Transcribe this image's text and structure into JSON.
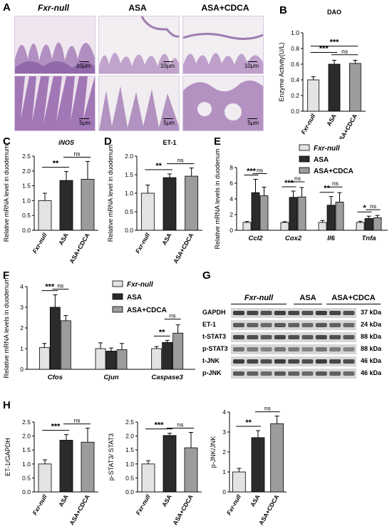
{
  "panels": {
    "A": {
      "label": "A",
      "columns": [
        "Fxr-null",
        "ASA",
        "ASA+CDCA"
      ],
      "scale_top": [
        "10μm",
        "10μm",
        "10μm"
      ],
      "scale_bottom": [
        "5μm",
        "5μm",
        "5μm"
      ]
    },
    "B": {
      "label": "B"
    },
    "C": {
      "label": "C"
    },
    "D": {
      "label": "D"
    },
    "E": {
      "label": "E"
    },
    "F": {
      "label": "F"
    },
    "G": {
      "label": "G",
      "groups": [
        "Fxr-null",
        "ASA",
        "ASA+CDCA"
      ],
      "rows": [
        "GAPDH",
        "ET-1",
        "t-STAT3",
        "p-STAT3",
        "t-JNK",
        "p-JNK"
      ],
      "kda": [
        "37 kDa",
        "24 kDa",
        "88 kDa",
        "88 kDa",
        "46 kDa",
        "46 kDa"
      ]
    },
    "H": {
      "label": "H"
    }
  },
  "legend": {
    "items": [
      "Fxr-null",
      "ASA",
      "ASA+CDCA"
    ]
  },
  "colors": {
    "fxr": "#e3e3e3",
    "asa": "#2b2b2b",
    "cdca": "#9c9c9c"
  },
  "chart_data": [
    {
      "id": "B",
      "type": "bar",
      "title": "DAO",
      "ylabel": "Enzyme Activity(U/L)",
      "categories": [
        "Fxr-null",
        "ASA",
        "ASA+CDCA"
      ],
      "values": [
        0.4,
        0.6,
        0.61
      ],
      "errors": [
        0.04,
        0.05,
        0.04
      ],
      "ylim": [
        0,
        1.0
      ],
      "yticks": [
        "0.0",
        "0.2",
        "0.4",
        "0.6",
        "0.8",
        "1.0"
      ],
      "sig": [
        {
          "a": 0,
          "b": 1,
          "label": "***"
        },
        {
          "a": 0,
          "b": 2,
          "label": "***"
        },
        {
          "a": 1,
          "b": 2,
          "label": "ns"
        }
      ]
    },
    {
      "id": "C",
      "type": "bar",
      "title": "iNOS",
      "ylabel": "Relative mRNA level in duodenum",
      "categories": [
        "Fxr-null",
        "ASA",
        "ASA+CDCA"
      ],
      "values": [
        1.0,
        1.68,
        1.72
      ],
      "errors": [
        0.25,
        0.3,
        0.6
      ],
      "ylim": [
        0,
        2.5
      ],
      "yticks": [
        "0.0",
        "0.5",
        "1.0",
        "1.5",
        "2.0",
        "2.5"
      ],
      "sig": [
        {
          "a": 0,
          "b": 1,
          "label": "**"
        },
        {
          "a": 1,
          "b": 2,
          "label": "ns"
        }
      ]
    },
    {
      "id": "D",
      "type": "bar",
      "title": "ET-1",
      "ylabel": "Relative mRNA level in duodenum",
      "categories": [
        "Fxr-null",
        "ASA",
        "ASA+CDCA"
      ],
      "values": [
        1.0,
        1.42,
        1.46
      ],
      "errors": [
        0.22,
        0.1,
        0.22
      ],
      "ylim": [
        0,
        2.0
      ],
      "yticks": [
        "0.0",
        "0.5",
        "1.0",
        "1.5",
        "2.0"
      ],
      "sig": [
        {
          "a": 0,
          "b": 1,
          "label": "**"
        },
        {
          "a": 1,
          "b": 2,
          "label": "ns"
        }
      ]
    },
    {
      "id": "E",
      "type": "bar",
      "ylabel": "Relative mRNA levels in duodenum",
      "categories": [
        "Ccl2",
        "Cox2",
        "Il6",
        "Tnfa"
      ],
      "series": [
        {
          "name": "Fxr-null",
          "values": [
            1.0,
            1.0,
            1.0,
            1.0
          ],
          "errors": [
            0.12,
            0.1,
            0.25,
            0.15
          ]
        },
        {
          "name": "ASA",
          "values": [
            4.8,
            4.2,
            3.2,
            1.5
          ],
          "errors": [
            1.7,
            0.8,
            1.1,
            0.3
          ]
        },
        {
          "name": "ASA+CDCA",
          "values": [
            4.4,
            4.25,
            3.6,
            1.6
          ],
          "errors": [
            1.1,
            1.2,
            1.2,
            0.3
          ]
        }
      ],
      "ylim": [
        0,
        8
      ],
      "yticks": [
        "0",
        "2",
        "4",
        "6",
        "8"
      ],
      "sig": [
        {
          "c": 0,
          "a": 0,
          "b": 1,
          "label": "***"
        },
        {
          "c": 0,
          "a": 1,
          "b": 2,
          "label": "ns"
        },
        {
          "c": 1,
          "a": 0,
          "b": 1,
          "label": "***"
        },
        {
          "c": 1,
          "a": 1,
          "b": 2,
          "label": "ns"
        },
        {
          "c": 2,
          "a": 0,
          "b": 1,
          "label": "**"
        },
        {
          "c": 2,
          "a": 1,
          "b": 2,
          "label": "ns"
        },
        {
          "c": 3,
          "a": 0,
          "b": 1,
          "label": "*"
        },
        {
          "c": 3,
          "a": 1,
          "b": 2,
          "label": "ns"
        }
      ]
    },
    {
      "id": "F",
      "type": "bar",
      "ylabel": "Relative mRNA levels in duodenum",
      "categories": [
        "Cfos",
        "Cjun",
        "Caspase3"
      ],
      "series": [
        {
          "name": "Fxr-null",
          "values": [
            1.05,
            1.0,
            1.0
          ],
          "errors": [
            0.2,
            0.28,
            0.1
          ]
        },
        {
          "name": "ASA",
          "values": [
            3.0,
            0.88,
            1.3
          ],
          "errors": [
            0.6,
            0.15,
            0.1
          ]
        },
        {
          "name": "ASA+CDCA",
          "values": [
            2.35,
            0.95,
            1.75
          ],
          "errors": [
            0.25,
            0.3,
            0.4
          ]
        }
      ],
      "ylim": [
        0,
        4
      ],
      "yticks": [
        "0",
        "1",
        "2",
        "3",
        "4"
      ],
      "sig": [
        {
          "c": 0,
          "a": 0,
          "b": 1,
          "label": "***"
        },
        {
          "c": 0,
          "a": 1,
          "b": 2,
          "label": "ns"
        },
        {
          "c": 2,
          "a": 0,
          "b": 1,
          "label": "**"
        },
        {
          "c": 2,
          "a": 1,
          "b": 2,
          "label": "ns"
        }
      ]
    },
    {
      "id": "H1",
      "type": "bar",
      "ylabel": "ET-1/GAPDH",
      "categories": [
        "Fxr-null",
        "ASA",
        "ASA+CDCA"
      ],
      "values": [
        1.0,
        1.85,
        1.78
      ],
      "errors": [
        0.15,
        0.2,
        0.5
      ],
      "ylim": [
        0,
        2.5
      ],
      "yticks": [
        "0.0",
        "0.5",
        "1.0",
        "1.5",
        "2.0",
        "2.5"
      ],
      "sig": [
        {
          "a": 0,
          "b": 1,
          "label": "***"
        },
        {
          "a": 1,
          "b": 2,
          "label": "ns"
        }
      ]
    },
    {
      "id": "H2",
      "type": "bar",
      "ylabel": "p-STAT3/ STAT3",
      "categories": [
        "Fxr-null",
        "ASA",
        "ASA+CDCA"
      ],
      "values": [
        1.0,
        2.02,
        1.58
      ],
      "errors": [
        0.12,
        0.08,
        0.55
      ],
      "ylim": [
        0,
        2.5
      ],
      "yticks": [
        "0.0",
        "0.5",
        "1.0",
        "1.5",
        "2.0",
        "2.5"
      ],
      "sig": [
        {
          "a": 0,
          "b": 1,
          "label": "***"
        },
        {
          "a": 1,
          "b": 2,
          "label": "ns"
        }
      ]
    },
    {
      "id": "H3",
      "type": "bar",
      "ylabel": "p-JNK/JNK",
      "categories": [
        "Fxr-null",
        "ASA",
        "ASA+CDCA"
      ],
      "values": [
        1.0,
        2.72,
        3.42
      ],
      "errors": [
        0.18,
        0.35,
        0.38
      ],
      "ylim": [
        0,
        4
      ],
      "yticks": [
        "0",
        "1",
        "2",
        "3",
        "4"
      ],
      "sig": [
        {
          "a": 0,
          "b": 1,
          "label": "**"
        },
        {
          "a": 1,
          "b": 2,
          "label": "ns"
        }
      ]
    }
  ]
}
